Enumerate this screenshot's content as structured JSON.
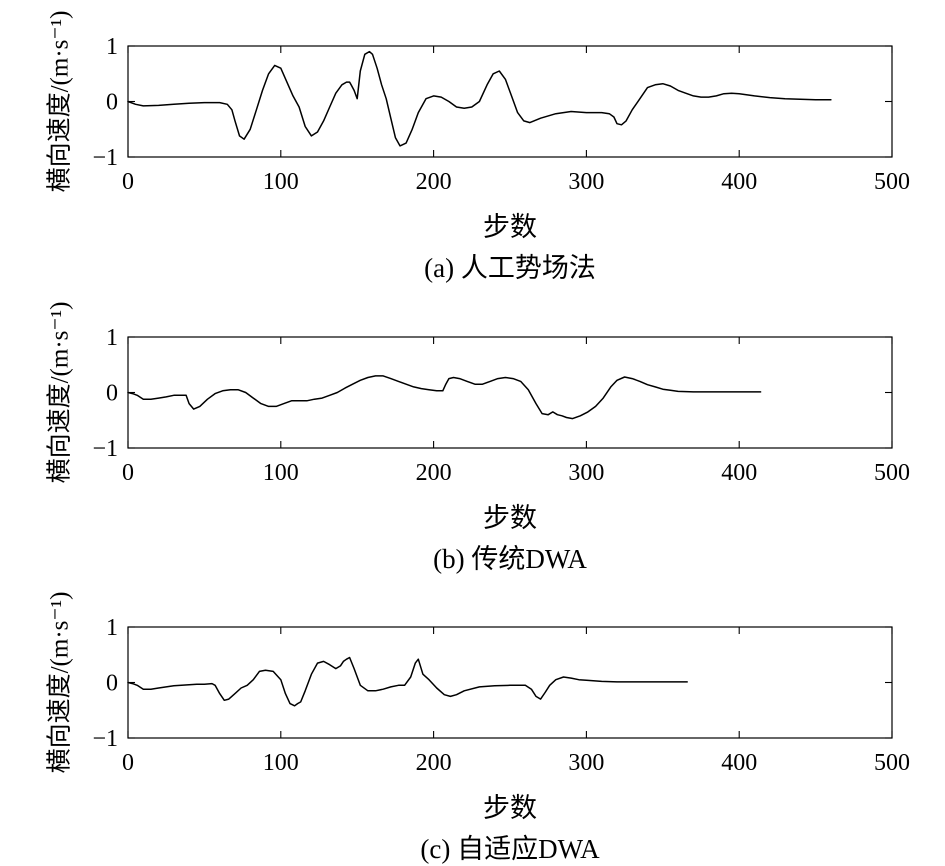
{
  "chart_data": [
    {
      "type": "line",
      "caption": "(a) 人工势场法",
      "xlabel": "步数",
      "ylabel": "横向速度/(m·s⁻¹)",
      "xlim": [
        0,
        500
      ],
      "ylim": [
        -1,
        1
      ],
      "xticks": [
        "0",
        "100",
        "200",
        "300",
        "400",
        "500"
      ],
      "yticks": [
        "−1",
        "0",
        "1"
      ],
      "series": [
        {
          "name": "人工势场法",
          "x": [
            0,
            5,
            10,
            20,
            30,
            40,
            50,
            60,
            65,
            68,
            70,
            73,
            76,
            80,
            84,
            88,
            92,
            96,
            100,
            104,
            108,
            112,
            116,
            120,
            124,
            128,
            132,
            136,
            140,
            143,
            145,
            146,
            148,
            150,
            152,
            155,
            158,
            160,
            163,
            166,
            169,
            172,
            175,
            178,
            182,
            186,
            190,
            195,
            200,
            205,
            210,
            215,
            220,
            225,
            230,
            235,
            239,
            243,
            247,
            251,
            255,
            259,
            263,
            270,
            280,
            290,
            300,
            310,
            315,
            318,
            320,
            323,
            326,
            330,
            335,
            340,
            345,
            350,
            355,
            360,
            365,
            370,
            375,
            380,
            385,
            390,
            395,
            400,
            410,
            420,
            430,
            440,
            450,
            460
          ],
          "y": [
            0,
            -0.05,
            -0.08,
            -0.07,
            -0.05,
            -0.03,
            -0.02,
            -0.02,
            -0.05,
            -0.15,
            -0.35,
            -0.62,
            -0.68,
            -0.5,
            -0.15,
            0.2,
            0.5,
            0.65,
            0.6,
            0.35,
            0.1,
            -0.1,
            -0.45,
            -0.62,
            -0.55,
            -0.35,
            -0.1,
            0.15,
            0.3,
            0.35,
            0.35,
            0.3,
            0.2,
            0.05,
            0.55,
            0.85,
            0.9,
            0.85,
            0.6,
            0.3,
            0.05,
            -0.3,
            -0.65,
            -0.8,
            -0.75,
            -0.5,
            -0.2,
            0.05,
            0.1,
            0.08,
            0.0,
            -0.1,
            -0.12,
            -0.1,
            0.0,
            0.3,
            0.5,
            0.55,
            0.4,
            0.1,
            -0.2,
            -0.35,
            -0.38,
            -0.3,
            -0.22,
            -0.18,
            -0.2,
            -0.2,
            -0.22,
            -0.28,
            -0.4,
            -0.42,
            -0.35,
            -0.15,
            0.05,
            0.25,
            0.3,
            0.32,
            0.28,
            0.2,
            0.15,
            0.1,
            0.08,
            0.08,
            0.1,
            0.14,
            0.15,
            0.14,
            0.1,
            0.07,
            0.05,
            0.04,
            0.03,
            0.03
          ]
        }
      ]
    },
    {
      "type": "line",
      "caption": "(b) 传统DWA",
      "xlabel": "步数",
      "ylabel": "横向速度/(m·s⁻¹)",
      "xlim": [
        0,
        500
      ],
      "ylim": [
        -1,
        1
      ],
      "xticks": [
        "0",
        "100",
        "200",
        "300",
        "400",
        "500"
      ],
      "yticks": [
        "−1",
        "0",
        "1"
      ],
      "series": [
        {
          "name": "传统DWA",
          "x": [
            0,
            3,
            6,
            10,
            15,
            20,
            25,
            30,
            33,
            35,
            38,
            40,
            43,
            47,
            52,
            57,
            62,
            67,
            72,
            77,
            82,
            87,
            92,
            97,
            102,
            107,
            112,
            117,
            122,
            127,
            132,
            137,
            142,
            147,
            152,
            157,
            162,
            167,
            172,
            177,
            182,
            187,
            192,
            197,
            202,
            206,
            208,
            210,
            213,
            217,
            222,
            227,
            232,
            237,
            242,
            247,
            252,
            257,
            262,
            267,
            271,
            275,
            278,
            281,
            284,
            287,
            291,
            296,
            301,
            306,
            311,
            316,
            320,
            325,
            330,
            335,
            340,
            345,
            350,
            355,
            360,
            370,
            380,
            390,
            400,
            414
          ],
          "y": [
            0,
            -0.02,
            -0.05,
            -0.12,
            -0.12,
            -0.1,
            -0.08,
            -0.05,
            -0.05,
            -0.05,
            -0.05,
            -0.2,
            -0.3,
            -0.25,
            -0.12,
            -0.02,
            0.03,
            0.05,
            0.05,
            0.0,
            -0.1,
            -0.2,
            -0.25,
            -0.25,
            -0.2,
            -0.15,
            -0.15,
            -0.15,
            -0.12,
            -0.1,
            -0.05,
            0.0,
            0.08,
            0.15,
            0.22,
            0.27,
            0.3,
            0.3,
            0.25,
            0.2,
            0.15,
            0.1,
            0.07,
            0.05,
            0.03,
            0.03,
            0.15,
            0.25,
            0.27,
            0.25,
            0.2,
            0.15,
            0.15,
            0.2,
            0.25,
            0.27,
            0.25,
            0.2,
            0.05,
            -0.2,
            -0.38,
            -0.4,
            -0.35,
            -0.4,
            -0.42,
            -0.45,
            -0.47,
            -0.42,
            -0.35,
            -0.25,
            -0.1,
            0.1,
            0.22,
            0.28,
            0.25,
            0.2,
            0.14,
            0.1,
            0.06,
            0.04,
            0.02,
            0.01,
            0.01,
            0.01,
            0.01,
            0.01
          ]
        }
      ]
    },
    {
      "type": "line",
      "caption": "(c) 自适应DWA",
      "xlabel": "步数",
      "ylabel": "横向速度/(m·s⁻¹)",
      "xlim": [
        0,
        500
      ],
      "ylim": [
        -1,
        1
      ],
      "xticks": [
        "0",
        "100",
        "200",
        "300",
        "400",
        "500"
      ],
      "yticks": [
        "−1",
        "0",
        "1"
      ],
      "series": [
        {
          "name": "自适应DWA",
          "x": [
            0,
            3,
            6,
            10,
            15,
            20,
            25,
            30,
            35,
            40,
            45,
            50,
            55,
            57,
            60,
            63,
            66,
            70,
            74,
            78,
            82,
            86,
            90,
            95,
            100,
            103,
            106,
            109,
            111,
            113,
            116,
            120,
            124,
            128,
            132,
            136,
            139,
            141,
            143,
            145,
            148,
            152,
            157,
            162,
            167,
            172,
            177,
            181,
            185,
            188,
            190,
            193,
            197,
            202,
            207,
            211,
            215,
            220,
            230,
            240,
            250,
            260,
            264,
            267,
            270,
            273,
            276,
            280,
            285,
            290,
            295,
            300,
            310,
            320,
            330,
            340,
            350,
            366
          ],
          "y": [
            0,
            -0.02,
            -0.05,
            -0.12,
            -0.12,
            -0.1,
            -0.08,
            -0.06,
            -0.05,
            -0.04,
            -0.03,
            -0.03,
            -0.02,
            -0.05,
            -0.2,
            -0.32,
            -0.3,
            -0.2,
            -0.1,
            -0.05,
            0.05,
            0.2,
            0.22,
            0.2,
            0.05,
            -0.2,
            -0.38,
            -0.42,
            -0.38,
            -0.35,
            -0.15,
            0.15,
            0.35,
            0.38,
            0.32,
            0.25,
            0.3,
            0.38,
            0.42,
            0.45,
            0.25,
            -0.05,
            -0.15,
            -0.15,
            -0.12,
            -0.08,
            -0.05,
            -0.05,
            0.1,
            0.35,
            0.42,
            0.15,
            0.05,
            -0.1,
            -0.22,
            -0.25,
            -0.22,
            -0.15,
            -0.08,
            -0.06,
            -0.05,
            -0.05,
            -0.12,
            -0.25,
            -0.3,
            -0.18,
            -0.05,
            0.05,
            0.1,
            0.08,
            0.05,
            0.04,
            0.02,
            0.01,
            0.01,
            0.01,
            0.01,
            0.01
          ]
        }
      ]
    }
  ]
}
